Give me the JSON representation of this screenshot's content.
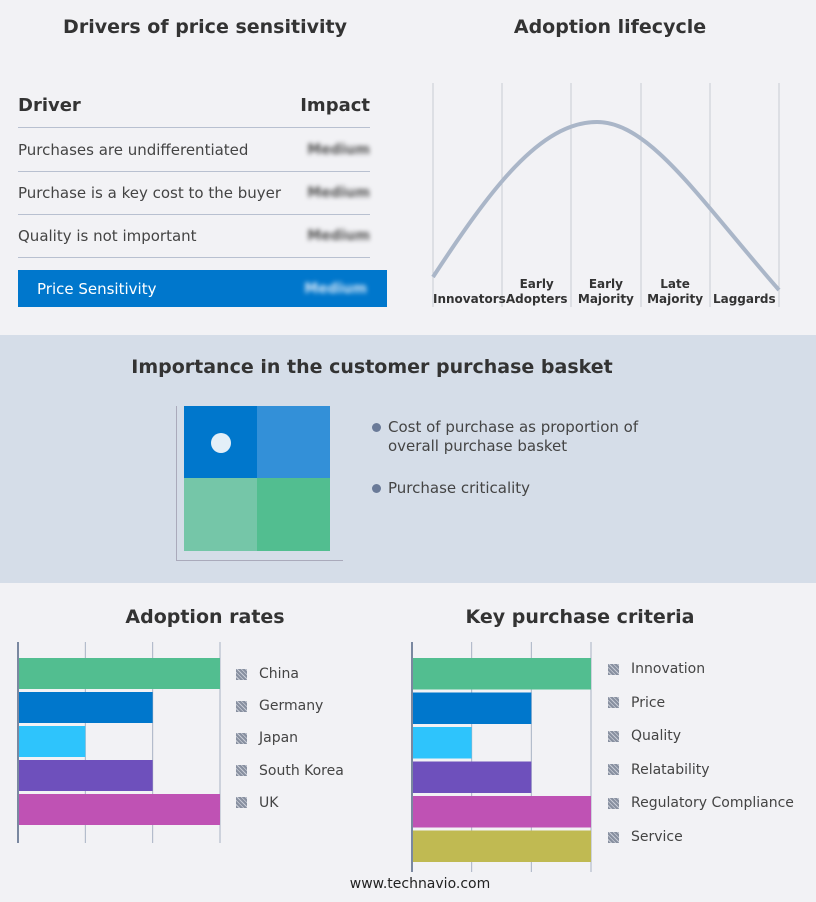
{
  "drivers": {
    "title": "Drivers of price sensitivity",
    "col_driver": "Driver",
    "col_impact": "Impact",
    "rows": [
      {
        "driver": "Purchases are undifferentiated",
        "impact": "Medium"
      },
      {
        "driver": "Purchase is a key cost to the buyer",
        "impact": "Medium"
      },
      {
        "driver": "Quality is not important",
        "impact": "Medium"
      }
    ],
    "summary": {
      "label": "Price Sensitivity",
      "impact": "Medium",
      "color": "#0077cc"
    }
  },
  "lifecycle": {
    "title": "Adoption lifecycle",
    "stages": [
      "Innovators",
      "Early Adopters",
      "Early Majority",
      "Late Majority",
      "Laggards"
    ]
  },
  "basket": {
    "title": "Importance in the customer purchase basket",
    "bullets": [
      "Cost of purchase as proportion of overall purchase basket",
      "Purchase criticality"
    ]
  },
  "chart_data": [
    {
      "type": "bar",
      "title": "Adoption rates",
      "categories": [
        "China",
        "Germany",
        "Japan",
        "South Korea",
        "UK"
      ],
      "values": [
        3,
        2,
        1,
        2,
        3
      ],
      "xlim": [
        0,
        3
      ],
      "grid": true,
      "legend": "right",
      "colors": [
        "#52be90",
        "#0077cc",
        "#2ec4fc",
        "#6e50bc",
        "#bf52b4"
      ]
    },
    {
      "type": "bar",
      "title": "Key purchase criteria",
      "categories": [
        "Innovation",
        "Price",
        "Quality",
        "Relatability",
        "Regulatory Compliance",
        "Service"
      ],
      "values": [
        3,
        2,
        1,
        2,
        3,
        3
      ],
      "xlim": [
        0,
        3
      ],
      "grid": true,
      "legend": "right",
      "colors": [
        "#52be90",
        "#0077cc",
        "#2ec4fc",
        "#6e50bc",
        "#bf52b4",
        "#c0ba52"
      ]
    }
  ],
  "footer": "www.technavio.com"
}
